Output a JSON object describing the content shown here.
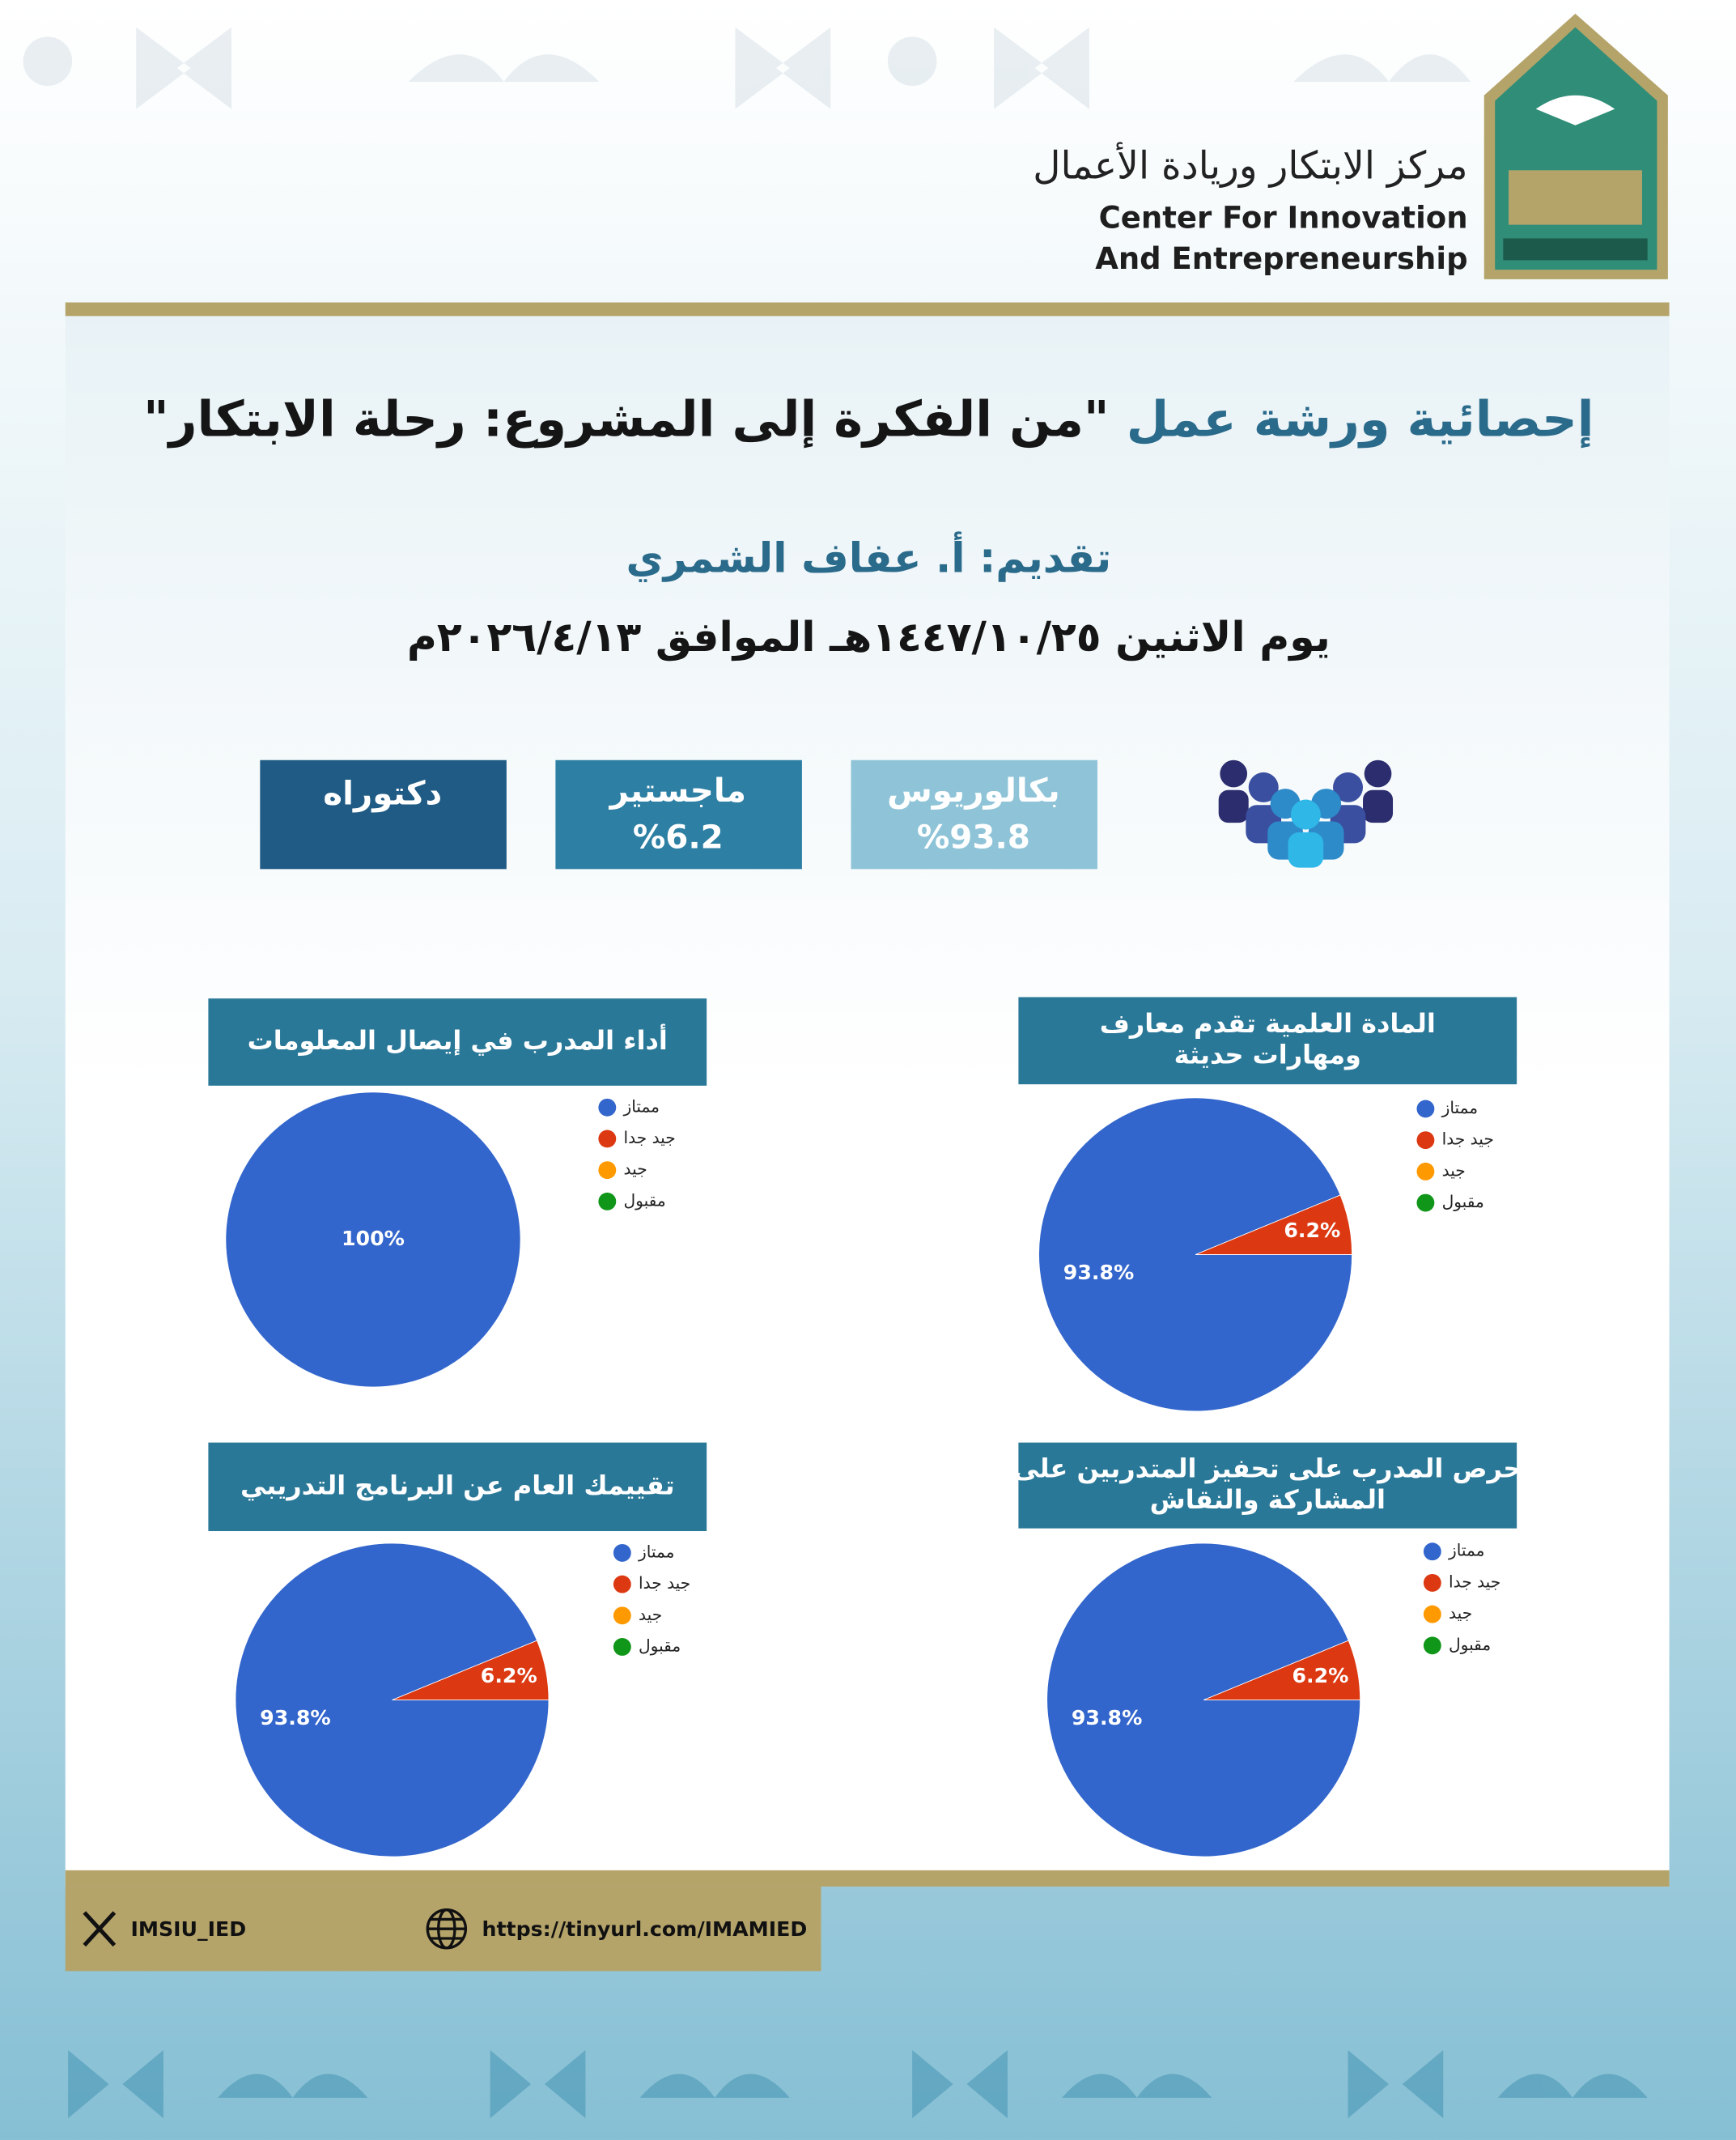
{
  "header": {
    "org_arabic": "مركز الابتكار وريادة الأعمال",
    "org_english_1": "Center For Innovation",
    "org_english_2": "And Entrepreneurship"
  },
  "title": {
    "part_1": "إحصائية ورشة عمل",
    "part_2": "\"من الفكرة إلى المشروع: رحلة الابتكار\""
  },
  "presenter": "تقديم: أ. عفاف الشمري",
  "date": "يوم الاثنين ١٤٤٧/١٠/٢٥هـ الموافق ٢٠٢٦/٤/١٣م",
  "degrees": [
    {
      "label": "بكالوريوس",
      "value": "%93.8",
      "color": "#8fc4d8"
    },
    {
      "label": "ماجستير",
      "value": "%6.2",
      "color": "#2d7fa3"
    },
    {
      "label": "دكتوراه",
      "color": "#1f5b85"
    }
  ],
  "chart_data": [
    {
      "type": "pie",
      "title": [
        "المادة العلمية تقدم معارف",
        "ومهارات حديثة"
      ],
      "categories": [
        "ممتاز",
        "جيد جدا",
        "جيد",
        "مقبول"
      ],
      "values": [
        93.8,
        6.2,
        0,
        0
      ],
      "value_labels": [
        "93.8%",
        "6.2%",
        null,
        null
      ],
      "colors": [
        "#3366cc",
        "#dc3912",
        "#ff9900",
        "#109618"
      ]
    },
    {
      "type": "pie",
      "title": [
        "أداء المدرب في إيصال المعلومات"
      ],
      "categories": [
        "ممتاز",
        "جيد جدا",
        "جيد",
        "مقبول"
      ],
      "values": [
        100,
        0,
        0,
        0
      ],
      "value_labels": [
        "100%",
        null,
        null,
        null
      ],
      "colors": [
        "#3366cc",
        "#dc3912",
        "#ff9900",
        "#109618"
      ]
    },
    {
      "type": "pie",
      "title": [
        "حرص المدرب على تحفيز المتدربين على",
        "المشاركة والنقاش"
      ],
      "categories": [
        "ممتاز",
        "جيد جدا",
        "جيد",
        "مقبول"
      ],
      "values": [
        93.8,
        6.2,
        0,
        0
      ],
      "value_labels": [
        "93.8%",
        "6.2%",
        null,
        null
      ],
      "colors": [
        "#3366cc",
        "#dc3912",
        "#ff9900",
        "#109618"
      ]
    },
    {
      "type": "pie",
      "title": [
        "تقييمك العام عن البرنامج التدريبي"
      ],
      "categories": [
        "ممتاز",
        "جيد جدا",
        "جيد",
        "مقبول"
      ],
      "values": [
        93.8,
        6.2,
        0,
        0
      ],
      "value_labels": [
        "93.8%",
        "6.2%",
        null,
        null
      ],
      "colors": [
        "#3366cc",
        "#dc3912",
        "#ff9900",
        "#109618"
      ]
    }
  ],
  "footer": {
    "x_handle": "IMSIU_IED",
    "url": "https://tinyurl.com/IMAMIED"
  }
}
